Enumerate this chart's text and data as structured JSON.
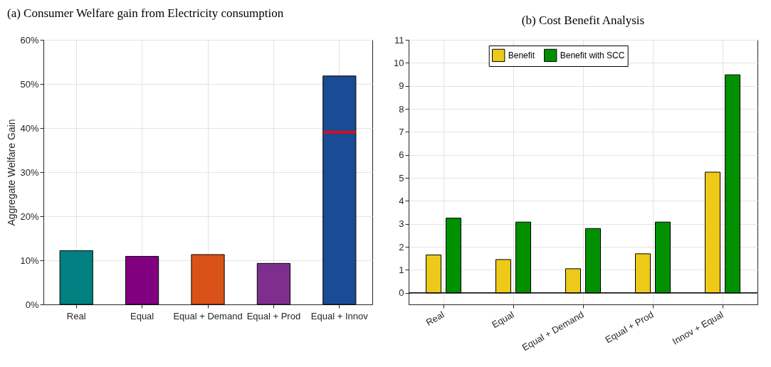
{
  "chart_data": [
    {
      "type": "bar",
      "title": "(a) Consumer Welfare gain from Electricity consumption",
      "ylabel": "Aggregate Welfare Gain",
      "categories": [
        "Real",
        "Equal",
        "Equal + Demand",
        "Equal + Prod",
        "Equal + Innov"
      ],
      "series": [
        {
          "type": "bar",
          "colors": [
            "#008080",
            "#800080",
            "#d95319",
            "#7e2f8e",
            "#1a4c96"
          ],
          "values": [
            12.2,
            10.9,
            11.3,
            9.3,
            51.8
          ]
        },
        {
          "type": "bar",
          "base": [
            null,
            null,
            null,
            null,
            38.8
          ],
          "values": [
            null,
            null,
            null,
            null,
            0.5
          ],
          "color": "#ff0000"
        }
      ],
      "ylim": [
        0,
        60
      ],
      "yticks": [
        {
          "value": 0,
          "label": "0%"
        },
        {
          "value": 10,
          "label": "10%"
        },
        {
          "value": 20,
          "label": "20%"
        },
        {
          "value": 30,
          "label": "30%"
        },
        {
          "value": 40,
          "label": "40%"
        },
        {
          "value": 50,
          "label": "50%"
        },
        {
          "value": 60,
          "label": "60%"
        }
      ],
      "grid": true,
      "legend": false
    },
    {
      "type": "bar",
      "title": "(b) Cost Benefit Analysis",
      "categories": [
        "Real",
        "Equal",
        "Equal + Demand",
        "Equal + Prod",
        "Innov + Equal"
      ],
      "series": [
        {
          "name": "Benefit",
          "color": "#edc919",
          "values": [
            1.65,
            1.45,
            1.05,
            1.7,
            5.25
          ]
        },
        {
          "name": "Benefit with SCC",
          "color": "#009000",
          "values": [
            3.25,
            3.08,
            2.8,
            3.08,
            9.48
          ]
        }
      ],
      "ylim": [
        -0.5,
        11
      ],
      "yticks": [
        0,
        1,
        2,
        3,
        4,
        5,
        6,
        7,
        8,
        9,
        10,
        11
      ],
      "ref_lines": [
        {
          "axis": "y",
          "value": 0,
          "color": "#000000"
        }
      ],
      "grid": true,
      "legend": "top"
    }
  ]
}
